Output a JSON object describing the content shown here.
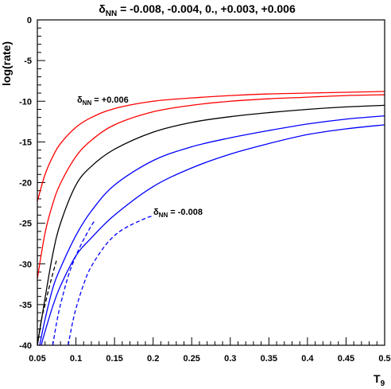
{
  "chart_data": {
    "type": "line",
    "title": {
      "prefix": "δ",
      "sub": "NN",
      "rest": " = -0.008, -0.004, 0., +0.003, +0.006"
    },
    "xlabel": {
      "main": "T",
      "sub": "9"
    },
    "ylabel": "log(rate)",
    "xlim": [
      0.05,
      0.5
    ],
    "ylim": [
      -40,
      0
    ],
    "x_ticks": [
      "0.05",
      "0.1",
      "0.15",
      "0.2",
      "0.25",
      "0.3",
      "0.35",
      "0.4",
      "0.45",
      "0.5"
    ],
    "y_ticks": [
      "0",
      "-5",
      "-10",
      "-15",
      "-20",
      "-25",
      "-30",
      "-35",
      "-40"
    ],
    "grid": false,
    "annotations": [
      {
        "prefix": "δ",
        "sub": "NN",
        "rest": " = +0.006"
      },
      {
        "prefix": "δ",
        "sub": "NN",
        "rest": " = -0.008"
      }
    ],
    "series": [
      {
        "color": "#ff0000",
        "dash": "solid",
        "x": [
          0.05,
          0.06,
          0.07,
          0.08,
          0.1,
          0.12,
          0.15,
          0.2,
          0.25,
          0.3,
          0.35,
          0.4,
          0.45,
          0.5
        ],
        "y": [
          -22.3,
          -19.0,
          -16.8,
          -15.2,
          -13.2,
          -12.0,
          -10.9,
          -10.0,
          -9.6,
          -9.3,
          -9.1,
          -9.0,
          -8.9,
          -8.8
        ]
      },
      {
        "color": "#ff0000",
        "dash": "solid",
        "x": [
          0.05,
          0.06,
          0.07,
          0.08,
          0.1,
          0.12,
          0.15,
          0.2,
          0.25,
          0.3,
          0.35,
          0.4,
          0.45,
          0.5
        ],
        "y": [
          -31.8,
          -26.2,
          -22.6,
          -20.1,
          -16.8,
          -14.8,
          -12.9,
          -11.3,
          -10.5,
          -10.0,
          -9.7,
          -9.5,
          -9.3,
          -9.2
        ]
      },
      {
        "color": "#000000",
        "dash": "solid",
        "x": [
          0.05,
          0.06,
          0.07,
          0.08,
          0.1,
          0.12,
          0.15,
          0.2,
          0.25,
          0.3,
          0.35,
          0.4,
          0.45,
          0.5
        ],
        "y": [
          -40.0,
          -34.2,
          -28.8,
          -25.0,
          -20.3,
          -18.0,
          -15.9,
          -13.8,
          -12.6,
          -11.9,
          -11.4,
          -11.0,
          -10.7,
          -10.5
        ]
      },
      {
        "color": "#000000",
        "dash": "dashed",
        "x": [
          0.05,
          0.055,
          0.06,
          0.065,
          0.07,
          0.075
        ],
        "y": [
          -40.0,
          -37.0,
          -35.0,
          -33.0,
          -31.2,
          -29.5
        ]
      },
      {
        "color": "#0000ff",
        "dash": "solid",
        "x": [
          0.053,
          0.06,
          0.07,
          0.08,
          0.1,
          0.12,
          0.15,
          0.2,
          0.25,
          0.3,
          0.35,
          0.4,
          0.45,
          0.5
        ],
        "y": [
          -40.0,
          -36.8,
          -33.0,
          -30.5,
          -26.5,
          -23.5,
          -20.3,
          -17.3,
          -15.6,
          -14.5,
          -13.6,
          -12.8,
          -12.2,
          -11.8
        ]
      },
      {
        "color": "#0000ff",
        "dash": "dashed",
        "x": [
          0.07,
          0.075,
          0.08,
          0.09,
          0.1,
          0.11,
          0.12,
          0.125
        ],
        "y": [
          -40.0,
          -37.2,
          -35.0,
          -31.5,
          -29.0,
          -27.0,
          -25.3,
          -24.6
        ]
      },
      {
        "color": "#0000ff",
        "dash": "solid",
        "x": [
          0.055,
          0.06,
          0.07,
          0.08,
          0.1,
          0.12,
          0.15,
          0.2,
          0.25,
          0.3,
          0.35,
          0.4,
          0.45,
          0.5
        ],
        "y": [
          -40.0,
          -38.3,
          -35.2,
          -32.7,
          -29.0,
          -26.8,
          -24.0,
          -20.5,
          -18.2,
          -16.5,
          -15.2,
          -14.1,
          -13.4,
          -12.9
        ]
      },
      {
        "color": "#0000ff",
        "dash": "dashed",
        "x": [
          0.09,
          0.095,
          0.1,
          0.11,
          0.12,
          0.14,
          0.16,
          0.19,
          0.2
        ],
        "y": [
          -40.0,
          -37.5,
          -35.5,
          -32.5,
          -30.3,
          -27.5,
          -25.8,
          -24.4,
          -24.1
        ]
      }
    ]
  }
}
